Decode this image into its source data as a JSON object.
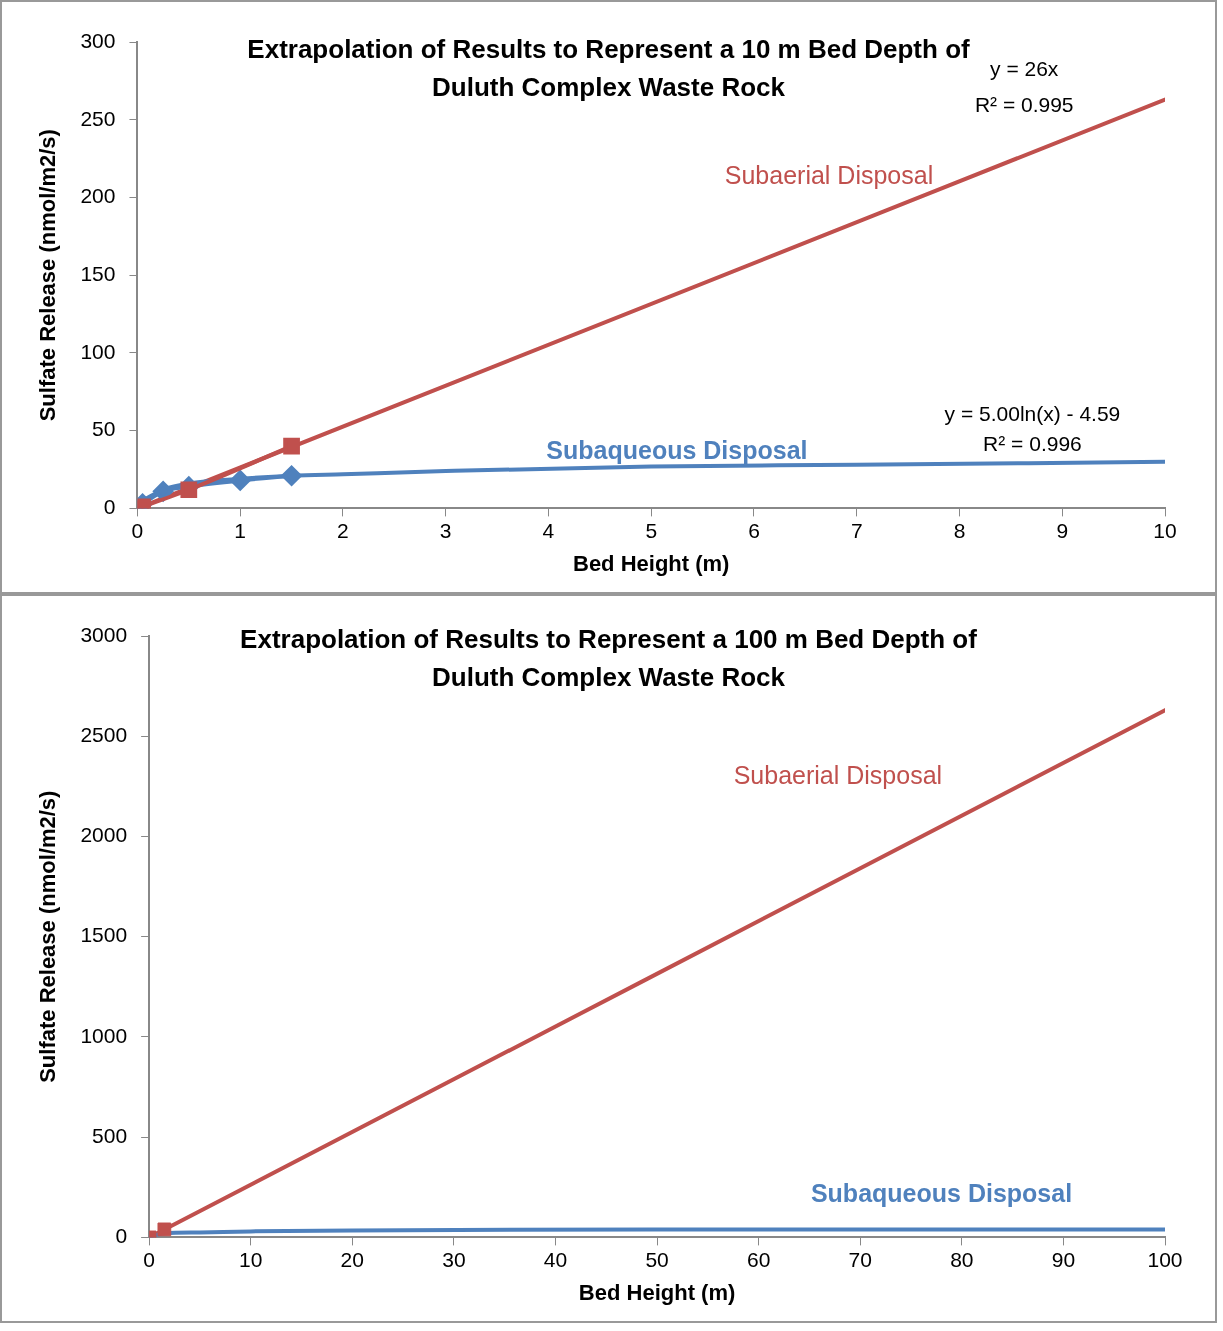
{
  "chart_data": [
    {
      "type": "line",
      "title": "Extrapolation of Results to Represent a 10 m Bed Depth of Duluth Complex Waste Rock",
      "xlabel": "Bed Height (m)",
      "ylabel": "Sulfate Release (nmol/m2/s)",
      "xlim": [
        0,
        10
      ],
      "xticks": [
        0,
        1,
        2,
        3,
        4,
        5,
        6,
        7,
        8,
        9,
        10
      ],
      "ylim": [
        0,
        300
      ],
      "yticks": [
        0,
        50,
        100,
        150,
        200,
        250,
        300
      ],
      "grid": false,
      "legend": false,
      "annotations": [
        "y = 26x",
        "R² = 0.995",
        "y = 5.00ln(x) - 4.59",
        "R² = 0.996"
      ],
      "series": [
        {
          "name": "Subaerial Disposal",
          "x": [
            0,
            10
          ],
          "values": [
            0,
            263
          ],
          "color": "#c0504d"
        },
        {
          "name": "Subaqueous Disposal",
          "x": [
            0.05,
            0.25,
            0.5,
            1,
            1.5,
            2,
            3,
            5,
            7,
            10
          ],
          "values": [
            5,
            12,
            16,
            19,
            21,
            22,
            24,
            27,
            28,
            30
          ],
          "color": "#4f81bd"
        },
        {
          "x": [
            0.05,
            0.25,
            0.5,
            1,
            1.5
          ],
          "values": [
            3,
            11,
            14,
            18,
            21
          ],
          "color": "#4f81bd",
          "marker": "diamond"
        },
        {
          "x": [
            0.05,
            0.5,
            1.5
          ],
          "values": [
            1,
            12,
            40
          ],
          "color": "#c0504d",
          "marker": "square"
        }
      ]
    },
    {
      "type": "line",
      "title": "Extrapolation of Results to Represent a 100 m Bed Depth of Duluth Complex Waste Rock",
      "xlabel": "Bed Height (m)",
      "ylabel": "Sulfate Release (nmol/m2/s)",
      "xlim": [
        0,
        100
      ],
      "xticks": [
        0,
        10,
        20,
        30,
        40,
        50,
        60,
        70,
        80,
        90,
        100
      ],
      "ylim": [
        0,
        3000
      ],
      "yticks": [
        0,
        500,
        1000,
        1500,
        2000,
        2500,
        3000
      ],
      "grid": false,
      "legend": false,
      "series": [
        {
          "name": "Subaerial Disposal",
          "x": [
            0,
            100
          ],
          "values": [
            0,
            2630
          ],
          "color": "#c0504d"
        },
        {
          "name": "Subaqueous Disposal",
          "x": [
            0.05,
            1.5,
            5,
            10,
            20,
            50,
            100
          ],
          "values": [
            5,
            20,
            25,
            30,
            35,
            40,
            40
          ],
          "color": "#4f81bd"
        },
        {
          "type": "scatter",
          "x": [
            0.05,
            1.5
          ],
          "values": [
            0,
            40
          ],
          "color": "#c0504d",
          "marker": "square"
        }
      ]
    }
  ]
}
